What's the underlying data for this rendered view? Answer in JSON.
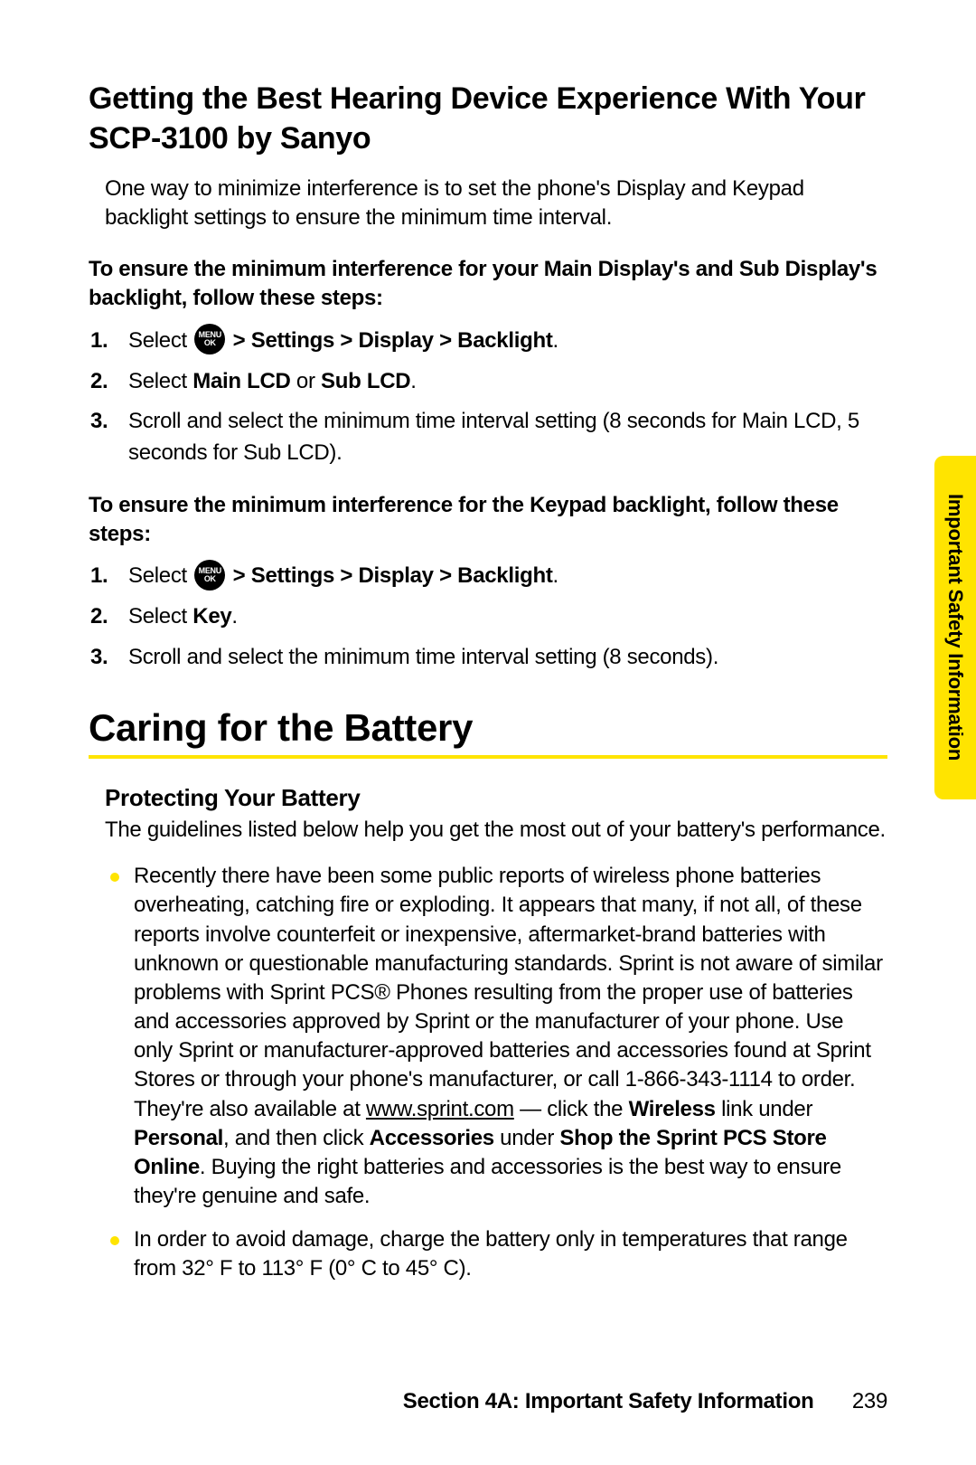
{
  "colors": {
    "accent": "#ffe400",
    "text": "#000000",
    "bg": "#ffffff"
  },
  "headings": {
    "title": "Getting the Best Hearing Device Experience With Your SCP-3100 by Sanyo",
    "major": "Caring for the Battery",
    "sub": "Protecting Your Battery"
  },
  "intro": "One way to minimize interference is to set the phone's Display and Keypad backlight settings to ensure the minimum time interval.",
  "lead1": "To ensure the minimum interference for your Main Display's and Sub Display's backlight, follow these steps:",
  "lead2": "To ensure the minimum interference for the Keypad backlight, follow these steps:",
  "menu_icon": {
    "top": "MENU",
    "bottom": "OK"
  },
  "steps1": {
    "s1_pre": "Select ",
    "s1_post": " > Settings > Display > Backlight",
    "s2_pre": "Select ",
    "s2_b1": "Main LCD",
    "s2_mid": " or ",
    "s2_b2": "Sub LCD",
    "s3": "Scroll and select the minimum time interval setting (8 seconds for Main LCD, 5 seconds for Sub LCD)."
  },
  "steps2": {
    "s1_pre": "Select ",
    "s1_post": " > Settings > Display > Backlight",
    "s2_pre": "Select ",
    "s2_b": "Key",
    "s3": "Scroll and select the minimum time interval setting (8 seconds)."
  },
  "battery_intro": "The guidelines listed below help you get the most out of your battery's performance.",
  "bullets": {
    "b1_a": "Recently there have been some public reports of wireless phone batteries overheating, catching fire or exploding. It appears that many, if not all, of these reports involve counterfeit or inexpensive, aftermarket-brand batteries with unknown or questionable manufacturing standards. Sprint is not aware of similar problems with Sprint PCS® Phones resulting from the proper use of batteries and accessories approved by Sprint or the manufacturer of your phone. Use only Sprint or manufacturer-approved batteries and accessories found at Sprint Stores or through your phone's manufacturer, or call 1-866-343-1114 to order. They're also available at ",
    "b1_link": "www.sprint.com",
    "b1_b": " — click the ",
    "b1_wireless": "Wireless",
    "b1_c": " link under ",
    "b1_personal": "Personal",
    "b1_d": ", and then click ",
    "b1_accessories": "Accessories",
    "b1_e": " under ",
    "b1_shop": "Shop the Sprint PCS Store Online",
    "b1_f": ". Buying the right batteries and accessories is the best way to ensure they're genuine and safe.",
    "b2": "In order to avoid damage, charge the battery only in temperatures that range from 32° F to 113° F (0° C to 45° C)."
  },
  "tab": "Important Safety Information",
  "footer": {
    "section": "Section 4A: Important Safety Information",
    "page": "239"
  }
}
